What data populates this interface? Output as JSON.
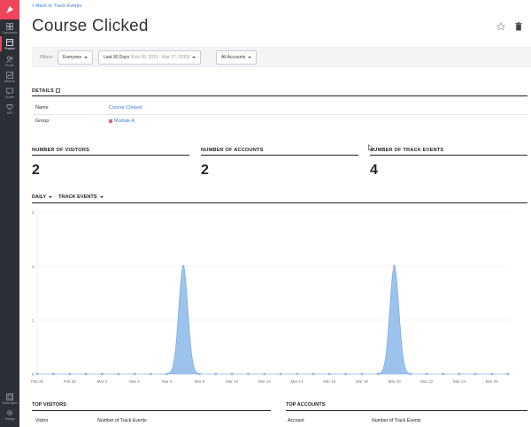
{
  "sidebar": {
    "items": [
      {
        "label": "Dashboards",
        "icon": "grid-icon"
      },
      {
        "label": "Product",
        "icon": "product-icon"
      },
      {
        "label": "People",
        "icon": "people-icon"
      },
      {
        "label": "Behavior",
        "icon": "behavior-icon"
      },
      {
        "label": "Guides",
        "icon": "guides-icon"
      },
      {
        "label": "NPS",
        "icon": "heart-icon"
      },
      {
        "label": "Subscription",
        "icon": "subscription-icon"
      },
      {
        "label": "Settings",
        "icon": "gear-icon"
      }
    ],
    "active": "Product",
    "accent": "#f0445d",
    "background": "#2d2f36"
  },
  "header": {
    "back_link": "< Back to Track Events",
    "title": "Course Clicked"
  },
  "filters": {
    "label": "Filters:",
    "segment": "Everyone",
    "date_range_label": "Last 30 Days",
    "date_range_detail": "(Feb 26, 2019 - Mar 27, 2019)",
    "accounts": "All Accounts"
  },
  "details": {
    "heading": "DETAILS",
    "toggle": "-",
    "rows": [
      {
        "key": "Name",
        "value": "Course Clicked"
      },
      {
        "key": "Group",
        "value": "Module A"
      }
    ]
  },
  "metrics": [
    {
      "label": "NUMBER OF VISITORS",
      "value": "2"
    },
    {
      "label": "NUMBER OF ACCOUNTS",
      "value": "2"
    },
    {
      "label": "NUMBER OF TRACK EVENTS",
      "value": "4"
    }
  ],
  "chart_controls": {
    "interval": "DAILY",
    "measure": "TRACK EVENTS"
  },
  "chart_data": {
    "type": "area",
    "categories": [
      "Feb 26",
      "Feb 27",
      "Feb 28",
      "Mar 1",
      "Mar 2",
      "Mar 3",
      "Mar 4",
      "Mar 5",
      "Mar 6",
      "Mar 7",
      "Mar 8",
      "Mar 9",
      "Mar 10",
      "Mar 11",
      "Mar 12",
      "Mar 13",
      "Mar 14",
      "Mar 15",
      "Mar 16",
      "Mar 17",
      "Mar 18",
      "Mar 19",
      "Mar 20",
      "Mar 21",
      "Mar 22",
      "Mar 23",
      "Mar 24",
      "Mar 25",
      "Mar 26",
      "Mar 27"
    ],
    "tick_labels": [
      "Feb 26",
      "Feb 28",
      "Mar 2",
      "Mar 4",
      "Mar 6",
      "Mar 8",
      "Mar 10",
      "Mar 12",
      "Mar 14",
      "Mar 16",
      "Mar 18",
      "Mar 20",
      "Mar 22",
      "Mar 24",
      "Mar 26"
    ],
    "values": [
      0,
      0,
      0,
      0,
      0,
      0,
      0,
      0,
      0,
      2,
      0,
      0,
      0,
      0,
      0,
      0,
      0,
      0,
      0,
      0,
      0,
      0,
      2,
      0,
      0,
      0,
      0,
      0,
      0,
      0
    ],
    "ylim": [
      0,
      3
    ],
    "y_ticks": [
      "0",
      "1",
      "2",
      "3"
    ],
    "grid": true,
    "area_color": "#9cc3ec",
    "line_color": "#6aa3e0",
    "point_color": "#8fb8e8"
  },
  "bottom": {
    "left": {
      "heading": "TOP VISITORS",
      "columns": [
        "Visitor",
        "Number of Track Events"
      ]
    },
    "right": {
      "heading": "TOP ACCOUNTS",
      "columns": [
        "Account",
        "Number of Track Events"
      ]
    }
  }
}
